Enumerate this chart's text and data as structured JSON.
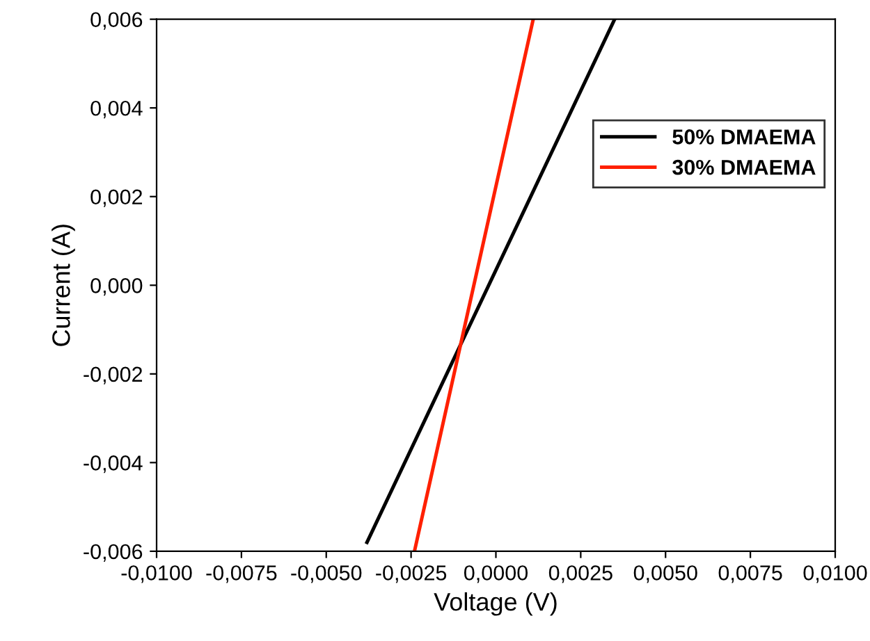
{
  "chart_data": {
    "type": "line",
    "xlabel": "Voltage (V)",
    "ylabel": "Current (A)",
    "xlim": [
      -0.01,
      0.01
    ],
    "ylim": [
      -0.006,
      0.006
    ],
    "xticks": [
      {
        "value": -0.01,
        "label": "-0,0100"
      },
      {
        "value": -0.0075,
        "label": "-0,0075"
      },
      {
        "value": -0.005,
        "label": "-0,0050"
      },
      {
        "value": -0.0025,
        "label": "-0,0025"
      },
      {
        "value": 0,
        "label": "0,0000"
      },
      {
        "value": 0.0025,
        "label": "0,0025"
      },
      {
        "value": 0.005,
        "label": "0,0050"
      },
      {
        "value": 0.0075,
        "label": "0,0075"
      },
      {
        "value": 0.01,
        "label": "0,0100"
      }
    ],
    "yticks": [
      {
        "value": -0.006,
        "label": "-0,006"
      },
      {
        "value": -0.004,
        "label": "-0,004"
      },
      {
        "value": -0.002,
        "label": "-0,002"
      },
      {
        "value": 0,
        "label": "0,000"
      },
      {
        "value": 0.002,
        "label": "0,002"
      },
      {
        "value": 0.004,
        "label": "0,004"
      },
      {
        "value": 0.006,
        "label": "0,006"
      }
    ],
    "grid": false,
    "legend": "top right",
    "marker": "none",
    "line_style": "solid",
    "series": [
      {
        "name": "50% DMAEMA",
        "color": "#000000",
        "x": [
          -0.0038,
          0.0035
        ],
        "values": [
          -0.0058,
          0.006
        ]
      },
      {
        "name": "30% DMAEMA",
        "color": "#ff2000",
        "x": [
          -0.0024,
          0.0011
        ],
        "values": [
          -0.006,
          0.006
        ]
      }
    ]
  }
}
